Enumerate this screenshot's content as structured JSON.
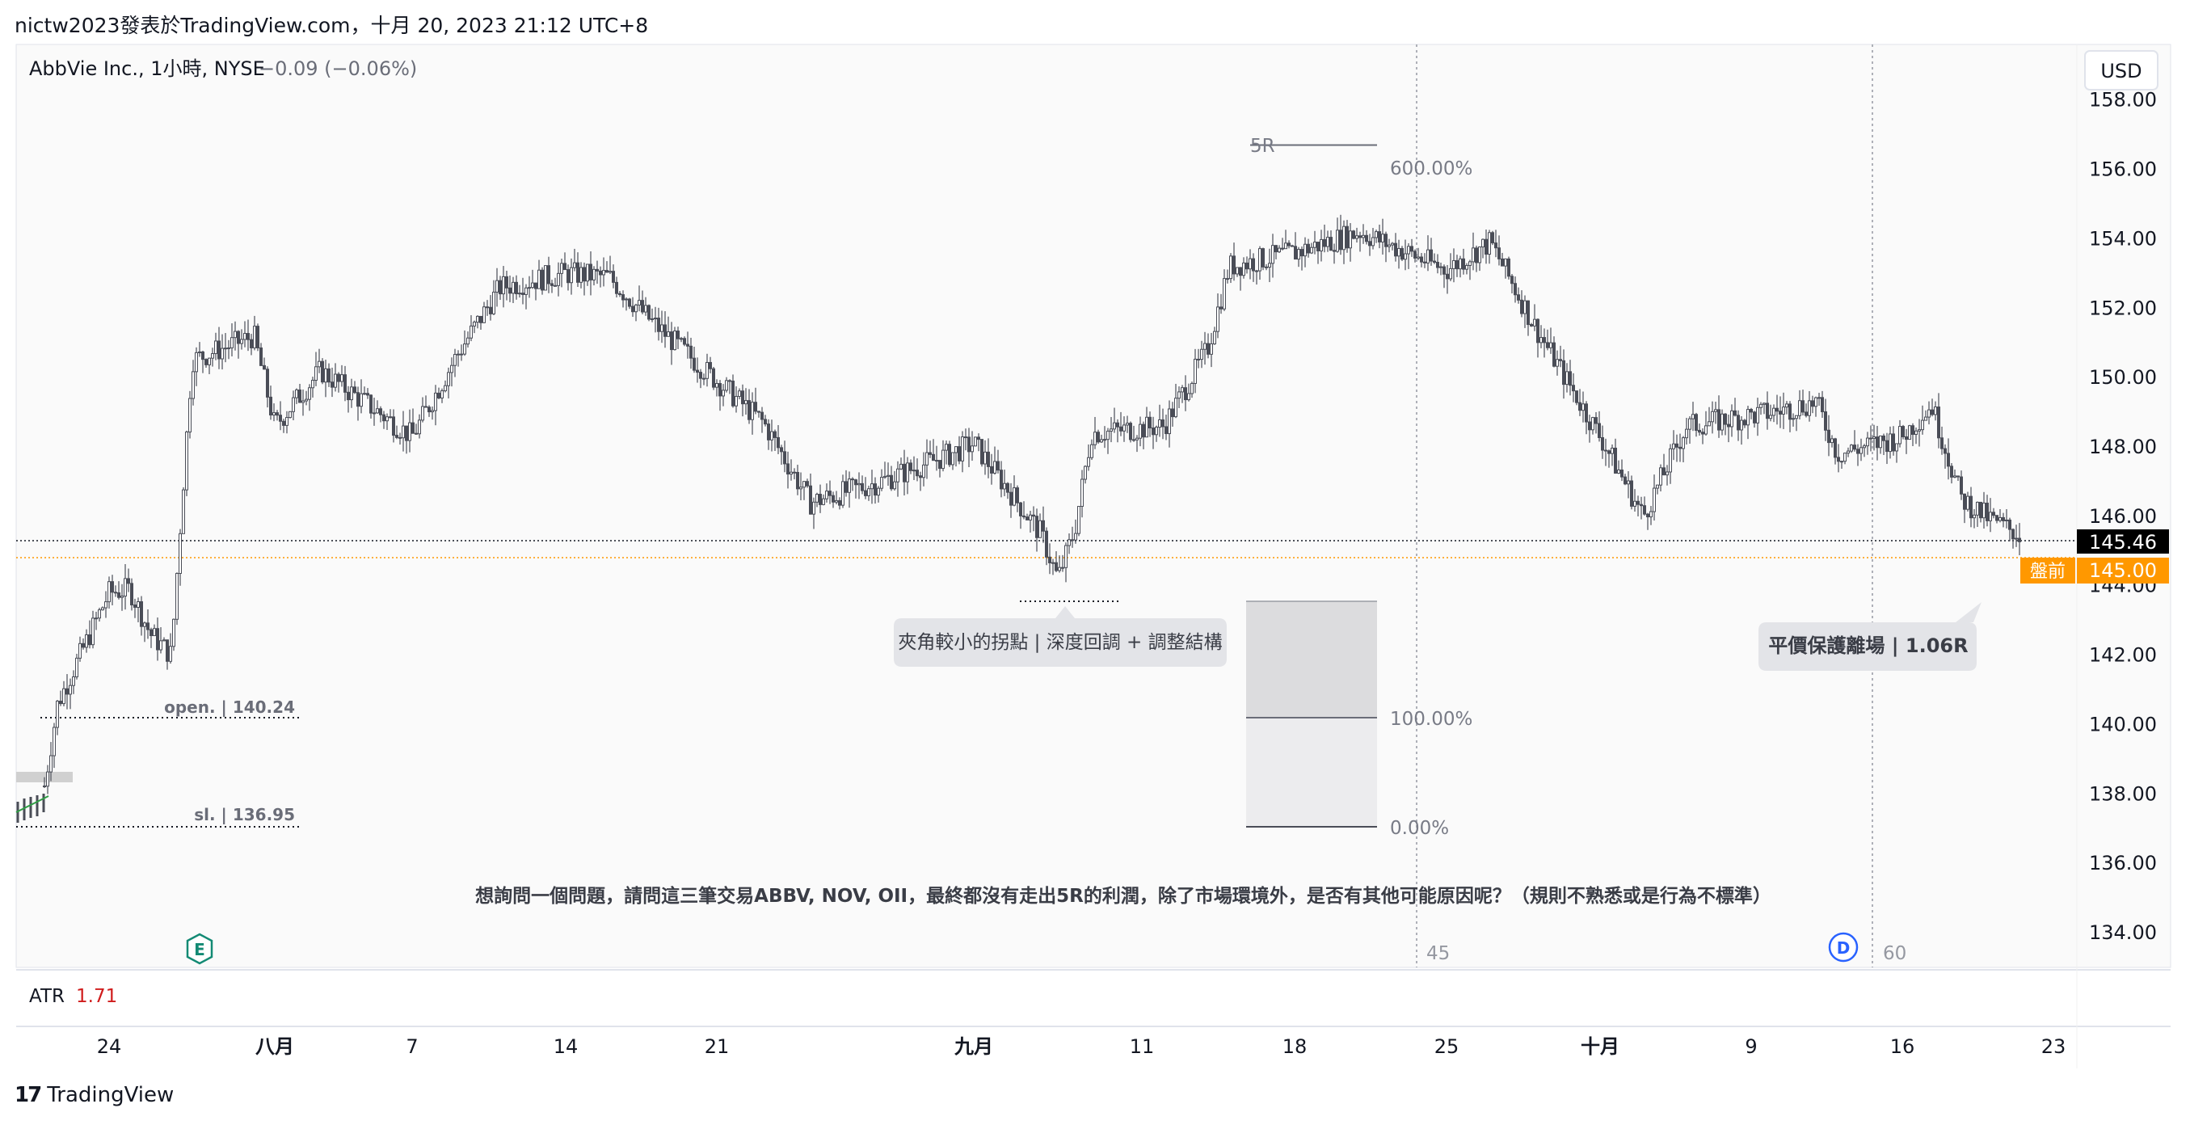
{
  "caption": "nictw2023發表於TradingView.com，十月 20, 2023 21:12 UTC+8",
  "header": {
    "symbol": "AbbVie Inc., 1小時, NYSE",
    "change": "−0.09 (−0.06%)"
  },
  "currency_button": "USD",
  "colors": {
    "candle": "#4a4d57",
    "background": "#fafafa",
    "last_price_bg": "#000000",
    "premarket_bg": "#ff9800",
    "premarket_line": "#ff9800",
    "atr_value": "#d01c1c",
    "divider": "#9598a1"
  },
  "price_labels": {
    "last": "145.46",
    "premarket_tag": "盤前",
    "premarket": "145.00"
  },
  "trade_levels": {
    "open_label": "open. | 140.24",
    "open_price": 140.24,
    "sl_label": "sl. | 136.95",
    "sl_price": 136.95
  },
  "fib": {
    "label_5r": "5R",
    "level_600": "600.00%",
    "level_100": "100.00%",
    "level_0": "0.00%",
    "price_600": 156.7,
    "price_100": 140.2,
    "price_0": 136.9
  },
  "annotations": {
    "callout_left": "夾角較小的拐點 | 深度回調 + 調整結構",
    "callout_right": "平價保護離場 | 1.06R",
    "question": "想詢問一個問題，請問這三筆交易ABBV, NOV, OII，最終都沒有走出5R的利潤，除了市場環境外，是否有其他可能原因呢？（規則不熟悉或是行為不標準）"
  },
  "events": {
    "earnings_badge": "E",
    "dividend_badge": "D",
    "bar_count_45": "45",
    "bar_count_60": "60"
  },
  "atr": {
    "label": "ATR",
    "value": "1.71"
  },
  "footer": "TradingView",
  "chart_data": {
    "type": "candlestick",
    "title": "AbbVie Inc., 1小時, NYSE",
    "ylabel": "USD",
    "ylim": [
      133.0,
      159.6
    ],
    "y_ticks": [
      "158.00",
      "156.00",
      "154.00",
      "152.00",
      "150.00",
      "148.00",
      "146.00",
      "144.00",
      "142.00",
      "140.00",
      "138.00",
      "136.00",
      "134.00"
    ],
    "x_tick_labels": [
      "24",
      "八月",
      "7",
      "14",
      "21",
      "九月",
      "11",
      "18",
      "25",
      "十月",
      "9",
      "16",
      "23"
    ],
    "close_path_keypoints": [
      {
        "date": "2023-07-20",
        "close": 137.5
      },
      {
        "date": "2023-07-21",
        "close": 140.6
      },
      {
        "date": "2023-07-24",
        "close": 143.8
      },
      {
        "date": "2023-07-25",
        "close": 143.9
      },
      {
        "date": "2023-07-26",
        "close": 142.6
      },
      {
        "date": "2023-07-27",
        "close": 142.0
      },
      {
        "date": "2023-07-28",
        "close": 150.5
      },
      {
        "date": "2023-07-31",
        "close": 151.2
      },
      {
        "date": "2023-08-01",
        "close": 148.6
      },
      {
        "date": "2023-08-03",
        "close": 150.2
      },
      {
        "date": "2023-08-07",
        "close": 148.3
      },
      {
        "date": "2023-08-09",
        "close": 150.6
      },
      {
        "date": "2023-08-11",
        "close": 152.6
      },
      {
        "date": "2023-08-14",
        "close": 153.0
      },
      {
        "date": "2023-08-16",
        "close": 152.9
      },
      {
        "date": "2023-08-18",
        "close": 151.6
      },
      {
        "date": "2023-08-21",
        "close": 149.9
      },
      {
        "date": "2023-08-23",
        "close": 148.7
      },
      {
        "date": "2023-08-25",
        "close": 146.4
      },
      {
        "date": "2023-08-28",
        "close": 147.0
      },
      {
        "date": "2023-08-31",
        "close": 147.8
      },
      {
        "date": "2023-09-01",
        "close": 148.1
      },
      {
        "date": "2023-09-05",
        "close": 145.5
      },
      {
        "date": "2023-09-06",
        "close": 144.2
      },
      {
        "date": "2023-09-07",
        "close": 145.6
      },
      {
        "date": "2023-09-08",
        "close": 148.4
      },
      {
        "date": "2023-09-12",
        "close": 148.6
      },
      {
        "date": "2023-09-14",
        "close": 150.8
      },
      {
        "date": "2023-09-15",
        "close": 153.2
      },
      {
        "date": "2023-09-18",
        "close": 153.6
      },
      {
        "date": "2023-09-21",
        "close": 154.2
      },
      {
        "date": "2023-09-25",
        "close": 153.1
      },
      {
        "date": "2023-09-27",
        "close": 153.9
      },
      {
        "date": "2023-09-29",
        "close": 151.5
      },
      {
        "date": "2023-10-02",
        "close": 148.3
      },
      {
        "date": "2023-10-04",
        "close": 146.0
      },
      {
        "date": "2023-10-06",
        "close": 148.6
      },
      {
        "date": "2023-10-10",
        "close": 149.0
      },
      {
        "date": "2023-10-12",
        "close": 149.3
      },
      {
        "date": "2023-10-13",
        "close": 147.8
      },
      {
        "date": "2023-10-16",
        "close": 148.3
      },
      {
        "date": "2023-10-17",
        "close": 149.2
      },
      {
        "date": "2023-10-18",
        "close": 146.5
      },
      {
        "date": "2023-10-19",
        "close": 145.9
      },
      {
        "date": "2023-10-20",
        "close": 145.46
      }
    ],
    "last": 145.46,
    "premarket": 145.0,
    "atr": 1.71,
    "grid": false
  }
}
